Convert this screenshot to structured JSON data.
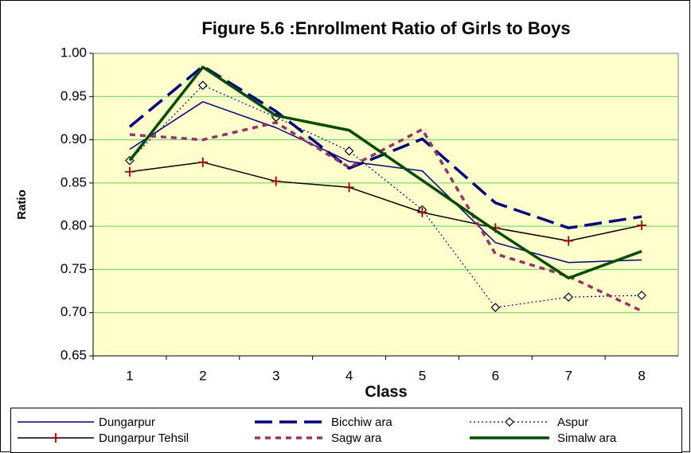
{
  "chart_data": {
    "type": "line",
    "title": "Figure 5.6  :Enrollment Ratio of Girls to Boys",
    "x_label": "Class",
    "y_label": "Ratio",
    "categories": [
      "1",
      "2",
      "3",
      "4",
      "5",
      "6",
      "7",
      "8"
    ],
    "series": [
      {
        "name": "Dungarpur",
        "color": "#000080",
        "values": [
          0.889,
          0.944,
          0.914,
          0.875,
          0.864,
          0.781,
          0.758,
          0.761
        ]
      },
      {
        "name": "Bicchiw ara",
        "color": "#000080",
        "values": [
          0.915,
          0.985,
          0.933,
          0.867,
          0.901,
          0.827,
          0.798,
          0.811
        ]
      },
      {
        "name": "Aspur",
        "color": "#000080",
        "values": [
          0.876,
          0.963,
          0.926,
          0.887,
          0.819,
          0.706,
          0.718,
          0.72
        ]
      },
      {
        "name": "Dungarpur Tehsil",
        "color": "#000000",
        "values": [
          0.863,
          0.874,
          0.852,
          0.845,
          0.816,
          0.798,
          0.783,
          0.801
        ]
      },
      {
        "name": "Sagw ara",
        "color": "#993366",
        "values": [
          0.906,
          0.9,
          0.92,
          0.868,
          0.912,
          0.768,
          0.742,
          0.702
        ]
      },
      {
        "name": "Simalw ara",
        "color": "#004d00",
        "values": [
          0.876,
          0.984,
          0.928,
          0.911,
          0.853,
          0.795,
          0.74,
          0.771
        ]
      }
    ],
    "ylim": [
      0.65,
      1.0
    ],
    "yticks": [
      {
        "value": 0.65,
        "label": "0.65"
      },
      {
        "value": 0.7,
        "label": "0.70"
      },
      0.75,
      {
        "value": 0.8,
        "label": "0.80"
      },
      0.85,
      {
        "value": 0.9,
        "label": "0.90"
      },
      0.95,
      {
        "value": 1.0,
        "label": "1.00"
      }
    ],
    "grid": true,
    "legend": "bottom"
  }
}
